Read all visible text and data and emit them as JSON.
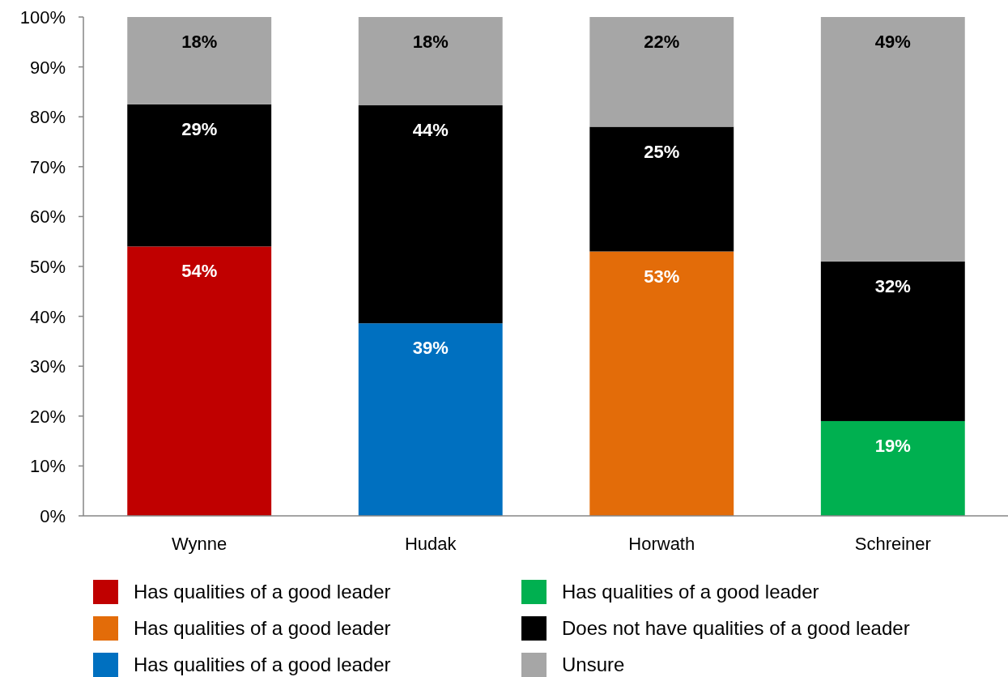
{
  "chart_data": {
    "type": "bar",
    "stacked": true,
    "categories": [
      "Wynne",
      "Hudak",
      "Horwath",
      "Schreiner"
    ],
    "series": [
      {
        "name": "Has qualities of a good leader",
        "color": "#c00000",
        "values": [
          54,
          null,
          null,
          null
        ],
        "value_labels": [
          "54%",
          null,
          null,
          null
        ]
      },
      {
        "name": "Has qualities of a good leader",
        "color": "#e36c09",
        "values": [
          null,
          null,
          53,
          null
        ],
        "value_labels": [
          null,
          null,
          "53%",
          null
        ]
      },
      {
        "name": "Has qualities of a good leader",
        "color": "#0070c0",
        "values": [
          null,
          38.6,
          null,
          null
        ],
        "value_labels": [
          null,
          "39%",
          null,
          null
        ]
      },
      {
        "name": "Has qualities of a good leader",
        "color": "#00b050",
        "values": [
          null,
          null,
          null,
          19
        ],
        "value_labels": [
          null,
          null,
          null,
          "19%"
        ]
      },
      {
        "name": "Does not have qualities of a good leader",
        "color": "#000000",
        "values": [
          28.5,
          43.7,
          25,
          32
        ],
        "value_labels": [
          "29%",
          "44%",
          "25%",
          "32%"
        ]
      },
      {
        "name": "Unsure",
        "color": "#a6a6a6",
        "values": [
          17.5,
          17.7,
          22,
          49
        ],
        "value_labels": [
          "18%",
          "18%",
          "22%",
          "49%"
        ]
      }
    ],
    "ylim": [
      0,
      100
    ],
    "yticks": [
      {
        "value": 0,
        "label": "0%"
      },
      {
        "value": 10,
        "label": "10%"
      },
      {
        "value": 20,
        "label": "20%"
      },
      {
        "value": 30,
        "label": "30%"
      },
      {
        "value": 40,
        "label": "40%"
      },
      {
        "value": 50,
        "label": "50%"
      },
      {
        "value": 60,
        "label": "60%"
      },
      {
        "value": 70,
        "label": "70%"
      },
      {
        "value": 80,
        "label": "80%"
      },
      {
        "value": 90,
        "label": "90%"
      },
      {
        "value": 100,
        "label": "100%"
      }
    ],
    "grid": false,
    "legend": "bottom"
  }
}
